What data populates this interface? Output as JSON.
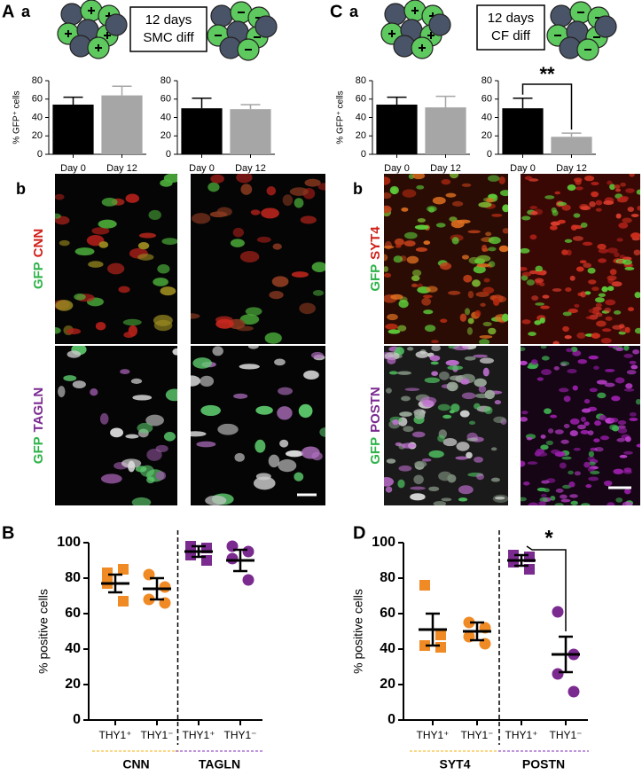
{
  "panel_labels": [
    "A",
    "a",
    "b",
    "B",
    "C",
    "a",
    "b",
    "D"
  ],
  "diagrams": [
    {
      "line1": "12 days",
      "line2": "SMC diff"
    },
    {
      "line1": "12 days",
      "line2": "CF diff"
    }
  ],
  "image_labels": [
    {
      "stain1": "GFP",
      "stain2": "CNN"
    },
    {
      "stain1": "GFP",
      "stain2": "TAGLN"
    },
    {
      "stain1": "GFP",
      "stain2": "SYT4"
    },
    {
      "stain1": "GFP",
      "stain2": "POSTN"
    }
  ],
  "chart_data": [
    {
      "type": "bar",
      "y_label": "% GFP⁺ cells",
      "categories": [
        "Day 0",
        "Day 12"
      ],
      "values": [
        54,
        64
      ],
      "errors": [
        8,
        10
      ],
      "colors": [
        "#000000",
        "#a6a6a6"
      ],
      "ylim": [
        0,
        80
      ],
      "yticks": [
        0,
        20,
        40,
        60,
        80
      ]
    },
    {
      "type": "bar",
      "categories": [
        "Day 0",
        "Day 12"
      ],
      "values": [
        50,
        49
      ],
      "errors": [
        11,
        5
      ],
      "colors": [
        "#000000",
        "#a6a6a6"
      ],
      "ylim": [
        0,
        80
      ],
      "yticks": [
        0,
        20,
        40,
        60,
        80
      ]
    },
    {
      "type": "bar",
      "y_label": "% GFP⁺ cells",
      "categories": [
        "Day 0",
        "Day 12"
      ],
      "values": [
        54,
        51
      ],
      "errors": [
        8,
        12
      ],
      "colors": [
        "#000000",
        "#a6a6a6"
      ],
      "ylim": [
        0,
        80
      ],
      "yticks": [
        0,
        20,
        40,
        60,
        80
      ]
    },
    {
      "type": "bar",
      "categories": [
        "Day 0",
        "Day 12"
      ],
      "values": [
        50,
        19
      ],
      "errors": [
        11,
        4
      ],
      "colors": [
        "#000000",
        "#a6a6a6"
      ],
      "ylim": [
        0,
        80
      ],
      "yticks": [
        0,
        20,
        40,
        60,
        80
      ],
      "significance": "**"
    },
    {
      "type": "dotplot",
      "y_label": "% positive cells",
      "categories": [
        "THY1⁺",
        "THY1⁻",
        "THY1⁺",
        "THY1⁻"
      ],
      "markers": [
        "square",
        "circle",
        "square",
        "circle"
      ],
      "colors": [
        "#f08a24",
        "#f08a24",
        "#7b2a90",
        "#7b2a90"
      ],
      "points": [
        [
          83,
          85,
          77,
          67
        ],
        [
          82,
          75,
          68,
          66
        ],
        [
          98,
          97,
          93,
          90
        ],
        [
          98,
          95,
          91,
          79
        ]
      ],
      "means": [
        77,
        74,
        95,
        90
      ],
      "errors": [
        5,
        6,
        3,
        6
      ],
      "groups": [
        {
          "name": "CNN",
          "color": "#f08a24",
          "line_color": "#f5c242"
        },
        {
          "name": "TAGLN",
          "color": "#7b2a90",
          "line_color": "#9b59c6"
        }
      ],
      "ylim": [
        0,
        100
      ],
      "yticks": [
        0,
        20,
        40,
        60,
        80,
        100
      ]
    },
    {
      "type": "dotplot",
      "y_label": "% positive cells",
      "categories": [
        "THY1⁺",
        "THY1⁻",
        "THY1⁺",
        "THY1⁻"
      ],
      "markers": [
        "square",
        "circle",
        "square",
        "circle"
      ],
      "colors": [
        "#f08a24",
        "#f08a24",
        "#7b2a90",
        "#7b2a90"
      ],
      "points": [
        [
          76,
          48,
          42,
          41
        ],
        [
          55,
          52,
          47,
          43
        ],
        [
          93,
          92,
          89,
          85
        ],
        [
          61,
          37,
          26,
          16
        ]
      ],
      "means": [
        51,
        50,
        90,
        37
      ],
      "errors": [
        9,
        5,
        3,
        10
      ],
      "groups": [
        {
          "name": "SYT4",
          "color": "#f08a24",
          "line_color": "#f5c242"
        },
        {
          "name": "POSTN",
          "color": "#7b2a90",
          "line_color": "#9b59c6"
        }
      ],
      "ylim": [
        0,
        100
      ],
      "yticks": [
        0,
        20,
        40,
        60,
        80,
        100
      ],
      "significance": "*"
    }
  ]
}
